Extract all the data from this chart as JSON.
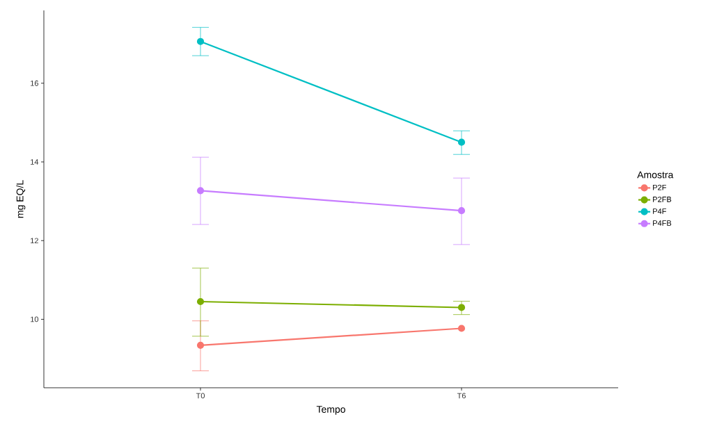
{
  "chart_data": {
    "type": "line",
    "xlabel": "Tempo",
    "ylabel": "mg EQ/L",
    "legend_title": "Amostra",
    "categories": [
      "T0",
      "T6"
    ],
    "series": [
      {
        "name": "P2F",
        "color": "#f8766d",
        "values": [
          9.34,
          9.77
        ],
        "errors": [
          [
            8.69,
            9.96
          ],
          null
        ]
      },
      {
        "name": "P2FB",
        "color": "#7cae00",
        "values": [
          10.45,
          10.3
        ],
        "errors": [
          [
            9.57,
            11.3
          ],
          [
            10.12,
            10.46
          ]
        ]
      },
      {
        "name": "P4F",
        "color": "#00bfc4",
        "values": [
          17.06,
          14.5
        ],
        "errors": [
          [
            16.7,
            17.42
          ],
          [
            14.19,
            14.79
          ]
        ]
      },
      {
        "name": "P4FB",
        "color": "#c77cff",
        "values": [
          13.27,
          12.76
        ],
        "errors": [
          [
            12.41,
            14.12
          ],
          [
            11.9,
            13.59
          ]
        ]
      }
    ],
    "ylim": [
      8.26,
      17.85
    ],
    "yticks": [
      10,
      12,
      14,
      16
    ],
    "grid": false,
    "legend": "right",
    "marker": "circle",
    "line_style": "solid"
  }
}
